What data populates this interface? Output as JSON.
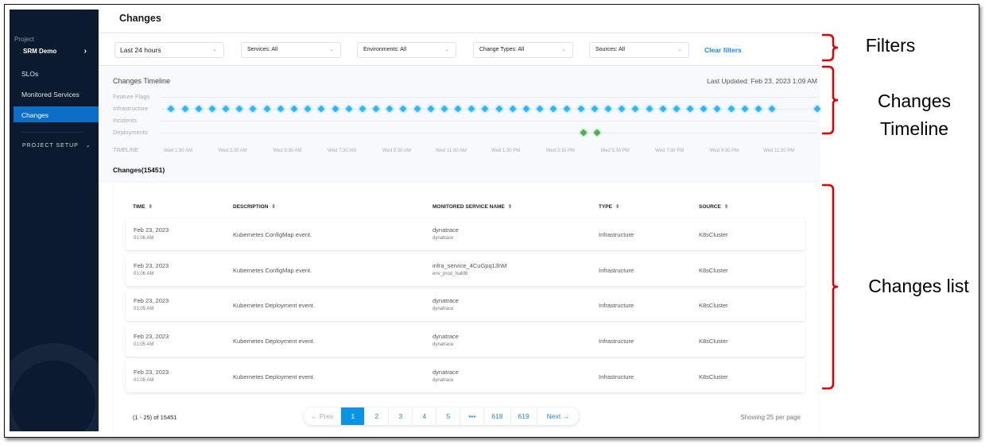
{
  "sidebar": {
    "project_label": "Project",
    "project_name": "SRM Demo",
    "items": [
      {
        "label": "SLOs"
      },
      {
        "label": "Monitored Services"
      },
      {
        "label": "Changes",
        "active": true
      }
    ],
    "setup_label": "PROJECT SETUP"
  },
  "header": {
    "title": "Changes"
  },
  "filters": {
    "time": "Last 24 hours",
    "services": "Services: All",
    "environments": "Environments: All",
    "change_types": "Change Types: All",
    "sources": "Sources: All",
    "clear": "Clear filters"
  },
  "timeline": {
    "title": "Changes Timeline",
    "last_updated": "Last Updated: Feb 23, 2023 1:09 AM",
    "rows": [
      {
        "label": "Feature Flags",
        "color": "#29b6f6",
        "events": []
      },
      {
        "label": "Infrastructure",
        "color": "#29b6f6",
        "events": [
          "01:15",
          "01:45",
          "02:15",
          "02:45",
          "03:15",
          "03:45",
          "04:15",
          "04:45",
          "05:15",
          "05:45",
          "06:15",
          "06:45",
          "07:15",
          "07:45",
          "08:15",
          "08:45",
          "09:15",
          "09:45",
          "10:15",
          "10:45",
          "11:15",
          "11:45",
          "12:15",
          "12:45",
          "13:15",
          "13:45",
          "14:15",
          "14:45",
          "15:15",
          "15:45",
          "16:15",
          "16:45",
          "17:15",
          "17:45",
          "18:15",
          "18:45",
          "19:15",
          "19:45",
          "20:15",
          "20:45",
          "21:15",
          "21:45",
          "22:15",
          "22:45",
          "23:15",
          "24:55"
        ]
      },
      {
        "label": "Incidents",
        "color": "#29b6f6",
        "events": []
      },
      {
        "label": "Deployments",
        "color": "#4caf50",
        "events": [
          "16:20",
          "16:50"
        ]
      }
    ],
    "axis_label": "TIMELINE",
    "ticks": [
      "Wed 1:30 AM",
      "Wed 3:30 AM",
      "Wed 5:30 AM",
      "Wed 7:30 AM",
      "Wed 9:30 AM",
      "Wed 11:30 AM",
      "Wed 1:30 PM",
      "Wed 3:30 PM",
      "Wed 5:30 PM",
      "Wed 7:30 PM",
      "Wed 9:30 PM",
      "Wed 11:30 PM"
    ]
  },
  "changes": {
    "count_label": "Changes(15451)",
    "columns": [
      "TIME",
      "DESCRIPTION",
      "MONITORED SERVICE NAME",
      "TYPE",
      "SOURCE"
    ],
    "rows": [
      {
        "date": "Feb 23, 2023",
        "time": "01:06 AM",
        "description": "Kubernetes ConfigMap event.",
        "service": "dynatrace",
        "env": "dynatrace",
        "type": "Infrastructure",
        "source": "K8sCluster"
      },
      {
        "date": "Feb 23, 2023",
        "time": "01:06 AM",
        "description": "Kubernetes ConfigMap event.",
        "service": "infra_service_4CuGpq13hM",
        "env": "env_prod_NaM8",
        "type": "Infrastructure",
        "source": "K8sCluster"
      },
      {
        "date": "Feb 23, 2023",
        "time": "01:05 AM",
        "description": "Kubernetes Deployment event.",
        "service": "dynatrace",
        "env": "dynatrace",
        "type": "Infrastructure",
        "source": "K8sCluster"
      },
      {
        "date": "Feb 23, 2023",
        "time": "01:05 AM",
        "description": "Kubernetes Deployment event.",
        "service": "dynatrace",
        "env": "dynatrace",
        "type": "Infrastructure",
        "source": "K8sCluster"
      },
      {
        "date": "Feb 23, 2023",
        "time": "01:05 AM",
        "description": "Kubernetes Deployment event.",
        "service": "dynatrace",
        "env": "dynatrace",
        "type": "Infrastructure",
        "source": "K8sCluster"
      }
    ]
  },
  "pagination": {
    "range": "(1 - 25) of 15451",
    "prev": "← Prev",
    "pages": [
      "1",
      "2",
      "3",
      "4",
      "5",
      "•••",
      "618",
      "619"
    ],
    "current": "1",
    "next": "Next →",
    "per_page": "Showing 25 per page"
  },
  "annotations": {
    "filters": "Filters",
    "timeline": "Changes Timeline",
    "list": "Changes list",
    "color": "#e00000"
  }
}
